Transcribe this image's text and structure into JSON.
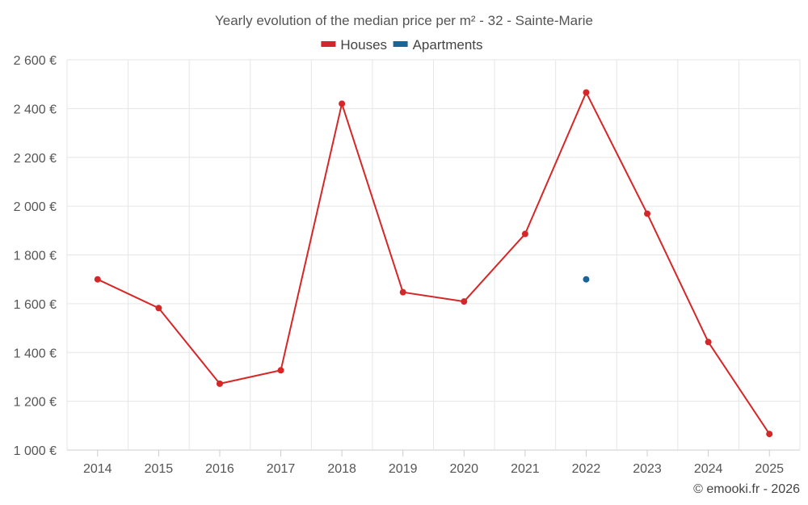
{
  "chart_data": {
    "type": "line",
    "title": "Yearly evolution of the median price per m² - 32 - Sainte-Marie",
    "categories": [
      "2014",
      "2015",
      "2016",
      "2017",
      "2018",
      "2019",
      "2020",
      "2021",
      "2022",
      "2023",
      "2024",
      "2025"
    ],
    "series": [
      {
        "name": "Houses",
        "color": "#d62728",
        "values": [
          1700,
          1582,
          1272,
          1327,
          2420,
          1647,
          1609,
          1886,
          2466,
          1969,
          1443,
          1066
        ]
      },
      {
        "name": "Apartments",
        "color": "#1a6496",
        "values": [
          null,
          null,
          null,
          null,
          null,
          null,
          null,
          null,
          1700,
          null,
          null,
          null
        ]
      }
    ],
    "ylim": [
      1000,
      2600
    ],
    "yticks": [
      1000,
      1200,
      1400,
      1600,
      1800,
      2000,
      2200,
      2400,
      2600
    ],
    "ytick_labels": [
      "1 000 €",
      "1 200 €",
      "1 400 €",
      "1 600 €",
      "1 800 €",
      "2 000 €",
      "2 200 €",
      "2 400 €",
      "2 600 €"
    ],
    "legend_position": "top-center",
    "grid": true
  },
  "credit": "© emooki.fr - 2026"
}
